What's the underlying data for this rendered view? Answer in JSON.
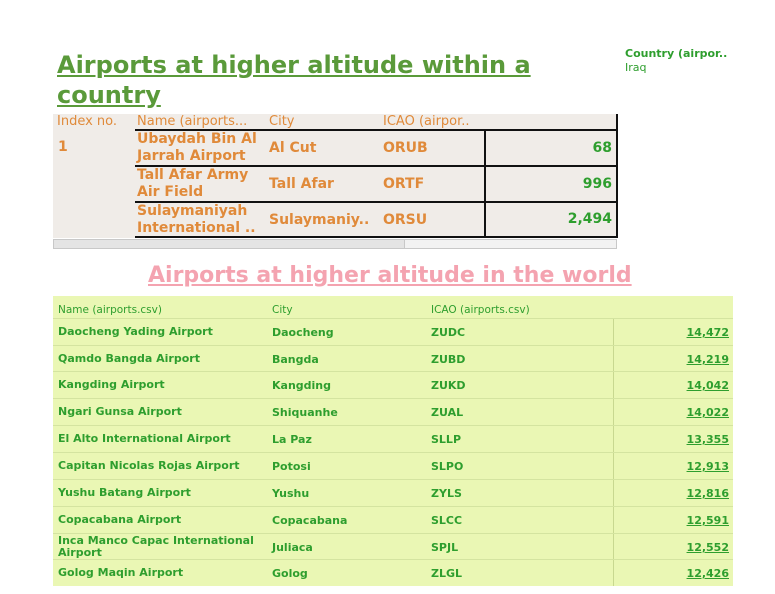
{
  "section1": {
    "title": "Airports at higher altitude within a country",
    "filter": {
      "title": "Country (airpor..",
      "value": "Iraq"
    },
    "headers": {
      "index": "Index no.",
      "name": "Name (airports...",
      "city": "City",
      "icao": "ICAO (airpor.."
    },
    "index_value": "1",
    "rows": [
      {
        "name": "Ubaydah Bin Al Jarrah Airport",
        "city": "Al Cut",
        "icao": "ORUB",
        "altitude": "68"
      },
      {
        "name": "Tall Afar Army Air Field",
        "city": "Tall Afar",
        "icao": "ORTF",
        "altitude": "996"
      },
      {
        "name": "Sulaymaniyah International ..",
        "city": "Sulaymaniy..",
        "icao": "ORSU",
        "altitude": "2,494"
      }
    ]
  },
  "section2": {
    "title": "Airports at higher altitude in the world",
    "headers": {
      "name": "Name (airports.csv)",
      "city": "City",
      "icao": "ICAO (airports.csv)"
    },
    "rows": [
      {
        "name": "Daocheng Yading Airport",
        "city": "Daocheng",
        "icao": "ZUDC",
        "altitude": "14,472"
      },
      {
        "name": "Qamdo Bangda Airport",
        "city": "Bangda",
        "icao": "ZUBD",
        "altitude": "14,219"
      },
      {
        "name": "Kangding Airport",
        "city": "Kangding",
        "icao": "ZUKD",
        "altitude": "14,042"
      },
      {
        "name": "Ngari Gunsa Airport",
        "city": "Shiquanhe",
        "icao": "ZUAL",
        "altitude": "14,022"
      },
      {
        "name": "El Alto International Airport",
        "city": "La Paz",
        "icao": "SLLP",
        "altitude": "13,355"
      },
      {
        "name": "Capitan Nicolas Rojas Airport",
        "city": "Potosi",
        "icao": "SLPO",
        "altitude": "12,913"
      },
      {
        "name": "Yushu Batang Airport",
        "city": "Yushu",
        "icao": "ZYLS",
        "altitude": "12,816"
      },
      {
        "name": "Copacabana Airport",
        "city": "Copacabana",
        "icao": "SLCC",
        "altitude": "12,591"
      },
      {
        "name": "Inca Manco Capac International Airport",
        "city": "Juliaca",
        "icao": "SPJL",
        "altitude": "12,552"
      },
      {
        "name": "Golog Maqin Airport",
        "city": "Golog",
        "icao": "ZLGL",
        "altitude": "12,426"
      }
    ]
  }
}
